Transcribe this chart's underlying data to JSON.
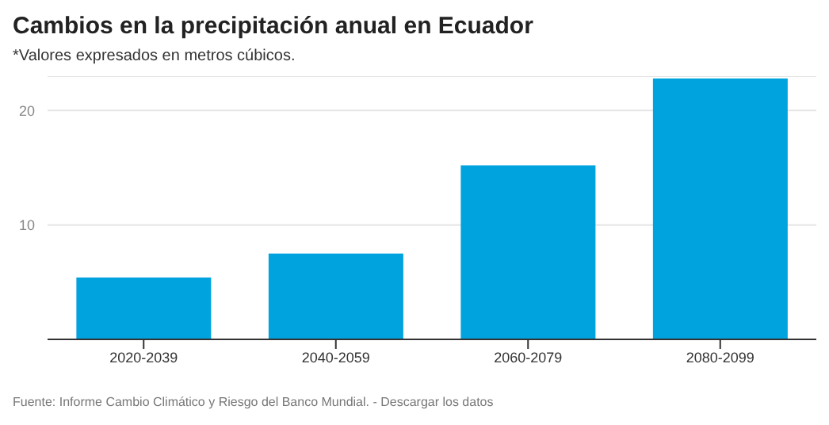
{
  "chart_data": {
    "type": "bar",
    "title": "Cambios en la precipitación anual en Ecuador",
    "subtitle": "*Valores expresados en metros cúbicos.",
    "annotations": [
      "Fuente: Informe Cambio Climático y Riesgo del Banco Mundial. - Descargar los datos"
    ],
    "categories": [
      "2020-2039",
      "2040-2059",
      "2060-2079",
      "2080-2099"
    ],
    "values": [
      5.4,
      7.5,
      15.2,
      22.8
    ],
    "color": "#00a3de",
    "ylim": [
      0,
      23
    ],
    "yticks": [
      10,
      20
    ],
    "grid": "y"
  }
}
